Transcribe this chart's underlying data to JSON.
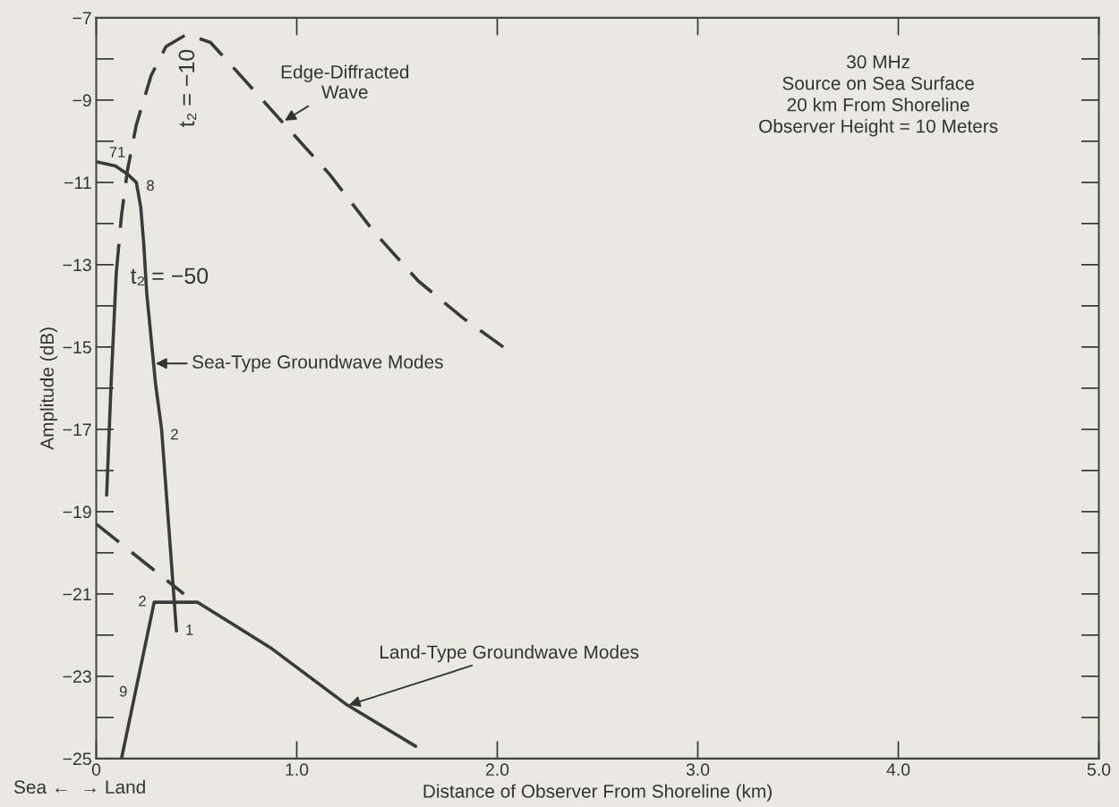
{
  "chart_data": {
    "type": "line",
    "xlabel": "Distance of Observer From Shoreline (km)",
    "ylabel": "Amplitude (dB)",
    "xlim": [
      0,
      5
    ],
    "ylim": [
      -25,
      -7
    ],
    "xticks": [
      {
        "value": 0,
        "label": "0"
      },
      {
        "value": 1,
        "label": "1.0"
      },
      {
        "value": 2,
        "label": "2.0"
      },
      {
        "value": 3,
        "label": "3.0"
      },
      {
        "value": 4,
        "label": "4.0"
      },
      {
        "value": 5,
        "label": "5.0"
      }
    ],
    "yticks": [
      {
        "value": -25,
        "label": "−25"
      },
      {
        "value": -23,
        "label": "−23"
      },
      {
        "value": -21,
        "label": "−21"
      },
      {
        "value": -19,
        "label": "−19"
      },
      {
        "value": -17,
        "label": "−17"
      },
      {
        "value": -15,
        "label": "−15"
      },
      {
        "value": -13,
        "label": "−13"
      },
      {
        "value": -11,
        "label": "−11"
      },
      {
        "value": -9,
        "label": "−9"
      },
      {
        "value": -7,
        "label": "−7"
      }
    ],
    "grid": false,
    "legend": false,
    "series": [
      {
        "type": "line",
        "line_style": "solid",
        "color": "#3a3a3a",
        "x": [
          0.052,
          0.074,
          0.1
        ],
        "values": [
          -18.6,
          -15.9,
          -13.2
        ]
      },
      {
        "type": "line",
        "line_style": "dashed",
        "color": "#3a3a3a",
        "x": [
          0.1,
          0.126,
          0.156,
          0.2,
          0.274,
          0.348,
          0.452,
          0.57,
          0.719,
          0.94,
          1.163,
          1.385,
          1.607,
          1.83,
          2.03
        ],
        "values": [
          -13.2,
          -11.8,
          -10.7,
          -9.6,
          -8.4,
          -7.7,
          -7.4,
          -7.6,
          -8.4,
          -9.6,
          -10.8,
          -12.2,
          -13.4,
          -14.3,
          -15.0
        ]
      },
      {
        "type": "line",
        "line_style": "solid",
        "color": "#3a3a3a",
        "x": [
          0,
          0.096,
          0.156,
          0.2,
          0.222,
          0.237,
          0.252,
          0.296,
          0.326,
          0.4
        ],
        "values": [
          -10.5,
          -10.6,
          -10.8,
          -11.0,
          -11.6,
          -12.5,
          -13.7,
          -15.9,
          -17.0,
          -21.9
        ]
      },
      {
        "type": "line",
        "line_style": "dashed",
        "color": "#3a3a3a",
        "x": [
          0,
          0.437
        ],
        "values": [
          -19.3,
          -21.0
        ]
      },
      {
        "type": "line",
        "line_style": "solid",
        "color": "#3a3a3a",
        "x": [
          0.126,
          0.289,
          0.504,
          0.867,
          1.252,
          1.593
        ],
        "values": [
          -25.0,
          -21.2,
          -21.2,
          -22.3,
          -23.7,
          -24.7
        ]
      }
    ],
    "annotations": [
      {
        "text": "Edge-Diffracted\nWave",
        "x": 0.94,
        "y": -9.5
      },
      {
        "text": "Sea-Type Groundwave Modes",
        "x": 0.296,
        "y": -15.4
      },
      {
        "text": "Land-Type Groundwave Modes",
        "x": 1.26,
        "y": -23.7
      },
      "t₂ = −10",
      "t₂ = −50",
      "71",
      "8",
      "2",
      "2",
      "1",
      "9",
      "30 MHz\nSource on Sea Surface\n20 km From Shoreline\nObserver Height = 10 Meters",
      "Sea ←  → Land"
    ]
  }
}
